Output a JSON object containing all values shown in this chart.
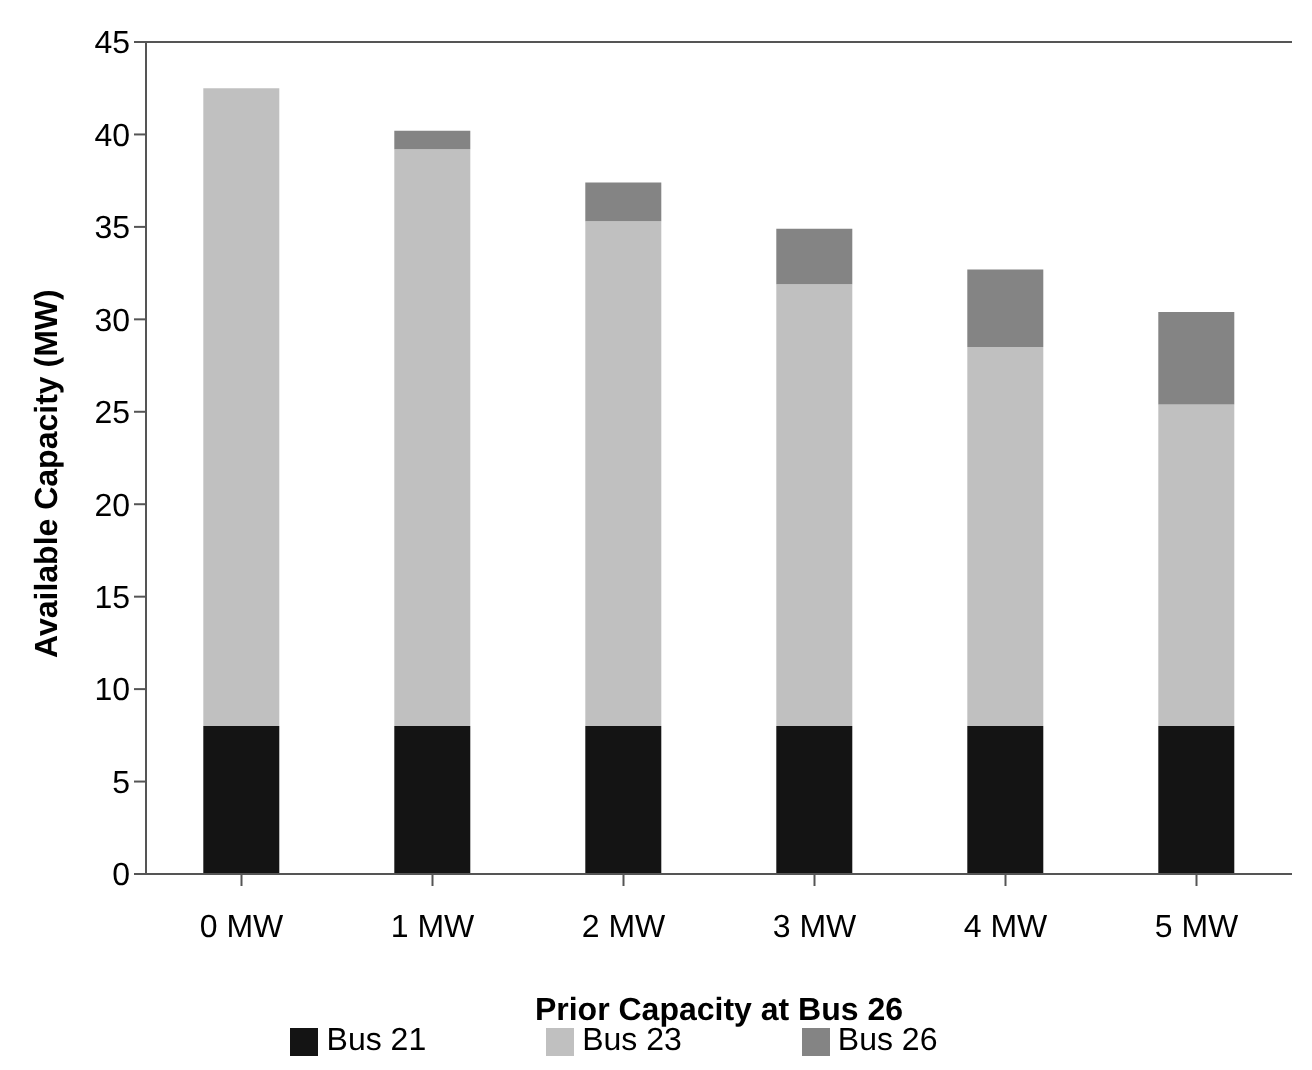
{
  "chart_data": {
    "type": "bar",
    "stacked": true,
    "xlabel": "Prior Capacity at Bus 26",
    "ylabel": "Available Capacity (MW)",
    "categories": [
      "0 MW",
      "1 MW",
      "2 MW",
      "3 MW",
      "4 MW",
      "5 MW"
    ],
    "series": [
      {
        "name": "Bus 21",
        "color": "#141414",
        "values": [
          8,
          8,
          8,
          8,
          8,
          8
        ]
      },
      {
        "name": "Bus 23",
        "color": "#c0c0c0",
        "values": [
          34.5,
          31.2,
          27.3,
          23.9,
          20.5,
          17.4
        ]
      },
      {
        "name": "Bus 26",
        "color": "#848484",
        "values": [
          0,
          1.0,
          2.1,
          3.0,
          4.2,
          5.0
        ]
      }
    ],
    "ylim": [
      0,
      45
    ],
    "yticks": [
      0,
      5,
      10,
      15,
      20,
      25,
      30,
      35,
      40,
      45
    ],
    "grid": false,
    "legend": "bottom"
  }
}
